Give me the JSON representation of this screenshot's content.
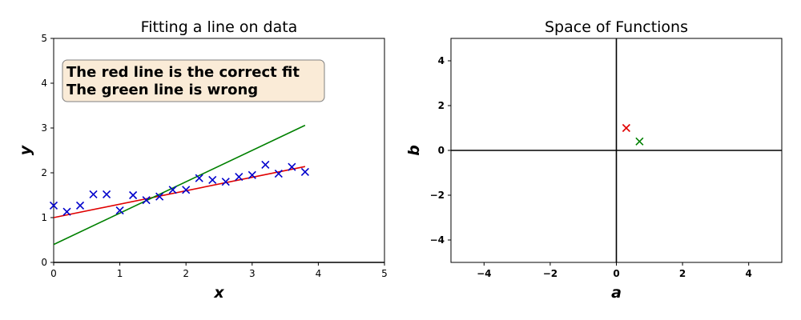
{
  "chart_data": [
    {
      "type": "scatter",
      "title": "Fitting a line on data",
      "xlabel": "x",
      "ylabel": "y",
      "xlim": [
        0,
        5
      ],
      "ylim": [
        0,
        5
      ],
      "xticks": [
        "0",
        "1",
        "2",
        "3",
        "4",
        "5"
      ],
      "yticks": [
        "0",
        "1",
        "2",
        "3",
        "4",
        "5"
      ],
      "grid": false,
      "points": {
        "color": "#0000cc",
        "x": [
          0.0,
          0.2,
          0.4,
          0.6,
          0.8,
          1.0,
          1.2,
          1.4,
          1.6,
          1.8,
          2.0,
          2.2,
          2.4,
          2.6,
          2.8,
          3.0,
          3.2,
          3.4,
          3.6,
          3.8
        ],
        "y": [
          1.27,
          1.13,
          1.27,
          1.52,
          1.52,
          1.16,
          1.5,
          1.39,
          1.47,
          1.62,
          1.62,
          1.88,
          1.84,
          1.8,
          1.91,
          1.95,
          2.18,
          1.98,
          2.13,
          2.02
        ]
      },
      "lines": [
        {
          "color": "#e00000",
          "x": [
            0,
            3.8
          ],
          "y": [
            1.0,
            2.14
          ]
        },
        {
          "color": "#008000",
          "x": [
            0,
            3.8
          ],
          "y": [
            0.4,
            3.06
          ]
        }
      ],
      "annotation": {
        "lines": [
          "The red line is the correct fit",
          "The green line is wrong"
        ],
        "box_color": "#faebd7",
        "position": "top-left"
      }
    },
    {
      "type": "scatter",
      "title": "Space of Functions",
      "xlabel": "a",
      "ylabel": "b",
      "xlim": [
        -5,
        5
      ],
      "ylim": [
        -5,
        5
      ],
      "xticks": [
        "−4",
        "−2",
        "0",
        "2",
        "4"
      ],
      "yticks": [
        "−4",
        "−2",
        "0",
        "2",
        "4"
      ],
      "grid": false,
      "points": [
        {
          "a": 0.3,
          "b": 1.0,
          "color": "#e00000"
        },
        {
          "a": 0.7,
          "b": 0.4,
          "color": "#008000"
        }
      ]
    }
  ]
}
